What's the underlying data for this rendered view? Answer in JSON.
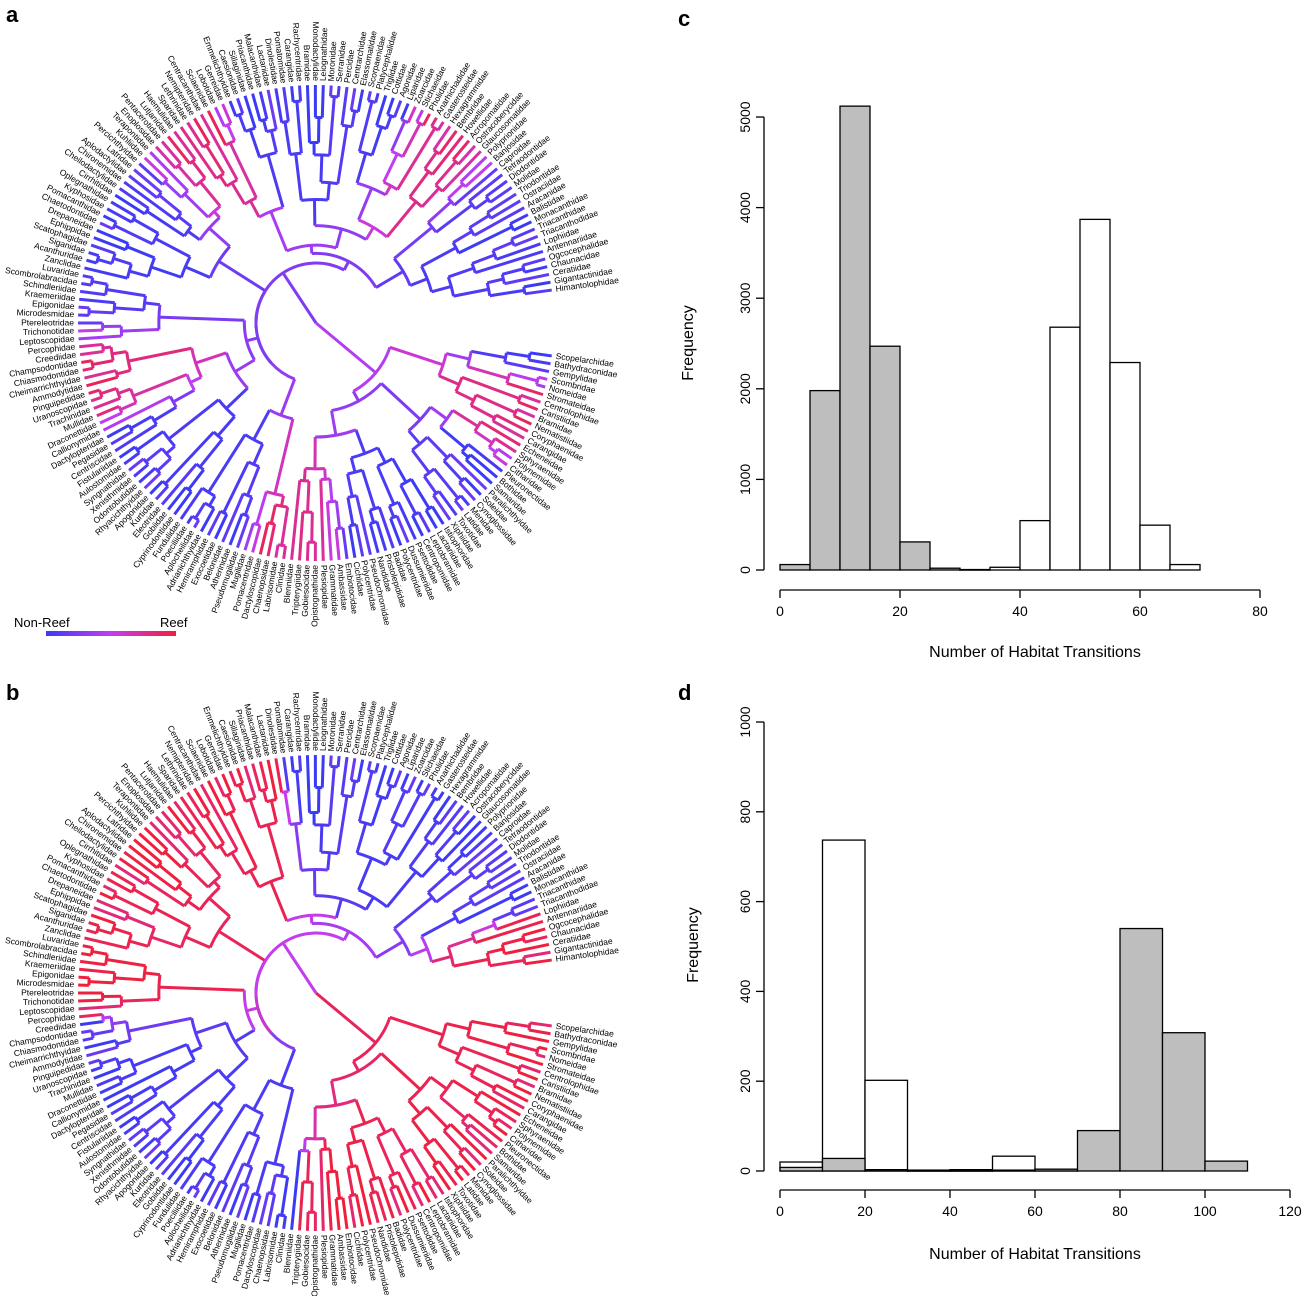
{
  "panels": {
    "a": {
      "letter": "a"
    },
    "b": {
      "letter": "b"
    },
    "c": {
      "letter": "c"
    },
    "d": {
      "letter": "d"
    }
  },
  "legend": {
    "left_label": "Non-Reef",
    "right_label": "Reef"
  },
  "colors": {
    "non_reef": "#3b3bf5",
    "mid": "#c43cf0",
    "reef": "#f0203c",
    "bar_gray": "#bebebe",
    "bar_white": "#ffffff"
  },
  "trees": {
    "taxa": [
      "Scopelarchidae",
      "Bathydraconidae",
      "Gempylidae",
      "Scombridae",
      "Nomeidae",
      "Stromateidae",
      "Centrolophidae",
      "Caristiidae",
      "Bramidae",
      "Nematistiidae",
      "Coryphaenidae",
      "Carangidae",
      "Echeneidae",
      "Sphyraenidae",
      "Polynemidae",
      "Citharidae",
      "Pleuronectidae",
      "Bothidae",
      "Samaridae",
      "Paralichthyidae",
      "Soleidae",
      "Cynoglossidae",
      "Menidae",
      "Latidae",
      "Toxotidae",
      "Xiphiidae",
      "Istiophoridae",
      "Lactariidae",
      "Leptobramidae",
      "Centropomidae",
      "Psettodidae",
      "Dussumieriidae",
      "Polycentridae",
      "Badidae",
      "Pristolepididae",
      "Nandidae",
      "Pseudochromidae",
      "Polycentridae",
      "Cichlidae",
      "Embiotocidae",
      "Ambassidae",
      "Grammatidae",
      "Plesiopidae",
      "Opistognathidae",
      "Gobiesocidae",
      "Tripterygiidae",
      "Blenniidae",
      "Clinidae",
      "Labrisomidae",
      "Chaenopsidae",
      "Dactyloscopidae",
      "Pomacentridae",
      "Mugilidae",
      "Pseudomugilidae",
      "Atherinidae",
      "Belonidae",
      "Exocoetidae",
      "Hemiramphidae",
      "Adrianichthyidae",
      "Aplocheilidae",
      "Poeciliidae",
      "Fundulidae",
      "Cyprinodontidae",
      "Gobiidae",
      "Eleotridae",
      "Kurtidae",
      "Apogonidae",
      "Rhyacichthyidae",
      "Odontobutidae",
      "Xenisthmidae",
      "Syngnathidae",
      "Aulostomidae",
      "Fistulariidae",
      "Centriscidae",
      "Pegasidae",
      "Dactylopteridae",
      "Callionymidae",
      "Draconettidae",
      "Mullidae",
      "Trachinidae",
      "Uranoscopidae",
      "Pinguipedidae",
      "Ammodytidae",
      "Cheimarrichthyidae",
      "Chiasmodontidae",
      "Champsodontidae",
      "Creediidae",
      "Percophidae",
      "Leptoscopidae",
      "Trichonotidae",
      "Ptereleotridae",
      "Microdesmidae",
      "Epigonidae",
      "Kraemeriidae",
      "Schindleriidae",
      "Scombrolabracidae",
      "Luvaridae",
      "Zanclidae",
      "Acanthuridae",
      "Siganidae",
      "Scatophagidae",
      "Ephippidae",
      "Drepaneidae",
      "Chaetodontidae",
      "Pomacanthidae",
      "Kyphosidae",
      "Oplegnathidae",
      "Cirrhitidae",
      "Cheilodactylidae",
      "Chironemidae",
      "Aplodactylidae",
      "Latridae",
      "Percichthyidae",
      "Kuhliidae",
      "Terapontidae",
      "Enoplosidae",
      "Pentacerotidae",
      "Lutjanidae",
      "Haemulidae",
      "Sparidae",
      "Lethrinidae",
      "Nemipteridae",
      "Centracanthidae",
      "Sciaenidae",
      "Lobotidae",
      "Gerreidae",
      "Emmelichthyidae",
      "Caesionidae",
      "Sillaginidae",
      "Priacanthidae",
      "Malacanthidae",
      "Lactariidae",
      "Dinolestidae",
      "Pomatomidae",
      "Carangidae",
      "Rachycentridae",
      "Bramidae",
      "Monodactylidae",
      "Leiognathidae",
      "Moronidae",
      "Serranidae",
      "Percidae",
      "Centrarchidae",
      "Elassomatidae",
      "Scorpaenidae",
      "Platycephalidae",
      "Triglidae",
      "Cottidae",
      "Agonidae",
      "Liparidae",
      "Zoarcidae",
      "Stichaeidae",
      "Pholidae",
      "Anarhichadidae",
      "Gasterosteidae",
      "Hexagrammidae",
      "Bembridae",
      "Howellidae",
      "Acropomatidae",
      "Ostracoberycidae",
      "Glaucosomatidae",
      "Polyprionidae",
      "Banjosidae",
      "Caproidae",
      "Tetraodontidae",
      "Diodontidae",
      "Molidae",
      "Triodontidae",
      "Ostraciidae",
      "Aracanidae",
      "Balistidae",
      "Monacanthidae",
      "Triacanthidae",
      "Triacanthodidae",
      "Lophiidae",
      "Antennariidae",
      "Ogcocephalidae",
      "Chaunacidae",
      "Ceratiidae",
      "Gigantactinidae",
      "Himantolophidae"
    ],
    "colors_a_reef_fraction": [],
    "colors_b_reef_fraction": []
  },
  "chart_data": [
    {
      "panel": "c",
      "type": "bar",
      "subtype": "overlaid-histogram",
      "xlabel": "Number of Habitat Transitions",
      "ylabel": "Frequency",
      "xlim": [
        0,
        85
      ],
      "ylim": [
        0,
        5000
      ],
      "xticks": [
        0,
        20,
        40,
        60,
        80
      ],
      "yticks": [
        0,
        1000,
        2000,
        3000,
        4000,
        5000
      ],
      "bin_width": 5,
      "series": [
        {
          "fill": "gray",
          "bins": [
            0,
            5,
            10,
            15,
            20,
            25
          ],
          "values": [
            60,
            1980,
            5120,
            2470,
            310,
            20
          ]
        },
        {
          "fill": "white",
          "bins": [
            30,
            35,
            40,
            45,
            50,
            55,
            60,
            65
          ],
          "values": [
            5,
            30,
            545,
            2680,
            3870,
            2290,
            495,
            60
          ]
        }
      ]
    },
    {
      "panel": "d",
      "type": "bar",
      "subtype": "overlaid-histogram",
      "xlabel": "Number of Habitat Transitions",
      "ylabel": "Frequency",
      "xlim": [
        0,
        120
      ],
      "ylim": [
        0,
        1000
      ],
      "xticks": [
        0,
        20,
        40,
        60,
        80,
        100,
        120
      ],
      "yticks": [
        0,
        200,
        400,
        600,
        800,
        1000
      ],
      "bin_width": 10,
      "series": [
        {
          "fill": "white",
          "bins": [
            0,
            10,
            20,
            30,
            40,
            50,
            60
          ],
          "values": [
            20,
            737,
            202,
            2,
            3,
            33,
            4
          ]
        },
        {
          "fill": "gray",
          "bins": [
            0,
            10,
            20,
            30,
            40,
            50,
            60,
            70,
            80,
            90,
            100
          ],
          "values": [
            8,
            28,
            3,
            1,
            1,
            2,
            4,
            90,
            540,
            308,
            22
          ]
        }
      ]
    }
  ]
}
